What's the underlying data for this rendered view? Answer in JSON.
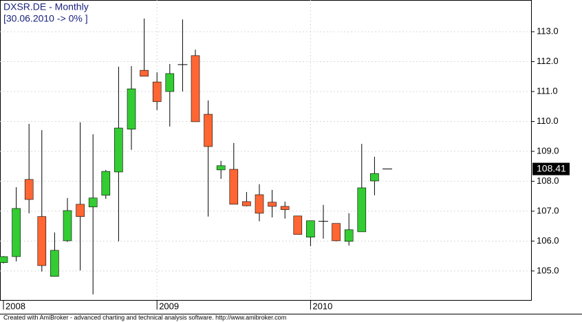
{
  "chart_data": {
    "type": "candlestick",
    "title": "DXSR.DE - Monthly",
    "subtitle": "[30.06.2010 -> 0% ]",
    "footer": "Created with AmiBroker - advanced charting and technical analysis software. http://www.amibroker.com",
    "categories": [
      "2008",
      null,
      null,
      null,
      null,
      null,
      null,
      null,
      null,
      null,
      null,
      null,
      "2009",
      null,
      null,
      null,
      null,
      null,
      null,
      null,
      null,
      null,
      null,
      null,
      "2010",
      null,
      null,
      null,
      null,
      null,
      null
    ],
    "open": [
      105.28,
      105.48,
      108.06,
      106.82,
      104.82,
      106.01,
      107.23,
      107.14,
      107.53,
      108.31,
      109.74,
      111.71,
      111.32,
      111.0,
      111.9,
      112.2,
      110.24,
      108.38,
      108.4,
      107.32,
      107.55,
      107.3,
      107.16,
      106.84,
      106.13,
      106.66,
      106.59,
      105.99,
      106.31,
      108.01,
      108.41
    ],
    "high": [
      105.5,
      107.8,
      109.92,
      109.71,
      106.29,
      107.44,
      109.97,
      109.57,
      108.38,
      111.83,
      111.85,
      113.44,
      111.64,
      111.92,
      113.41,
      112.4,
      110.7,
      108.68,
      109.28,
      107.64,
      107.9,
      107.71,
      107.32,
      106.84,
      106.68,
      107.21,
      106.59,
      106.93,
      109.25,
      108.82,
      108.41
    ],
    "low": [
      105.25,
      105.32,
      106.93,
      104.98,
      104.82,
      105.97,
      105.02,
      104.22,
      107.41,
      105.99,
      109.05,
      111.51,
      110.38,
      109.83,
      111.0,
      109.99,
      106.82,
      108.08,
      107.23,
      107.16,
      106.66,
      106.79,
      106.75,
      106.22,
      105.83,
      106.08,
      105.99,
      105.85,
      106.31,
      107.53,
      108.41
    ],
    "close": [
      105.48,
      107.09,
      107.39,
      105.18,
      105.69,
      107.02,
      106.82,
      107.44,
      108.33,
      109.78,
      111.09,
      111.51,
      110.66,
      111.6,
      111.9,
      109.99,
      109.16,
      108.52,
      107.23,
      107.18,
      106.93,
      107.16,
      107.05,
      106.22,
      106.68,
      106.66,
      106.01,
      106.38,
      107.78,
      108.26,
      108.41
    ],
    "up_color": "#33cc33",
    "down_color": "#ff6633",
    "ylim": [
      104.03,
      114.06
    ],
    "yticks": [
      {
        "value": 105,
        "label": "105.0"
      },
      {
        "value": 106,
        "label": "106.0"
      },
      {
        "value": 107,
        "label": "107.0"
      },
      {
        "value": 108,
        "label": "108.0"
      },
      {
        "value": 109,
        "label": "109.0"
      },
      {
        "value": 110,
        "label": "110.0"
      },
      {
        "value": 111,
        "label": "111.0"
      },
      {
        "value": 112,
        "label": "112.0"
      },
      {
        "value": 113,
        "label": "113.0"
      }
    ],
    "grid": true
  }
}
